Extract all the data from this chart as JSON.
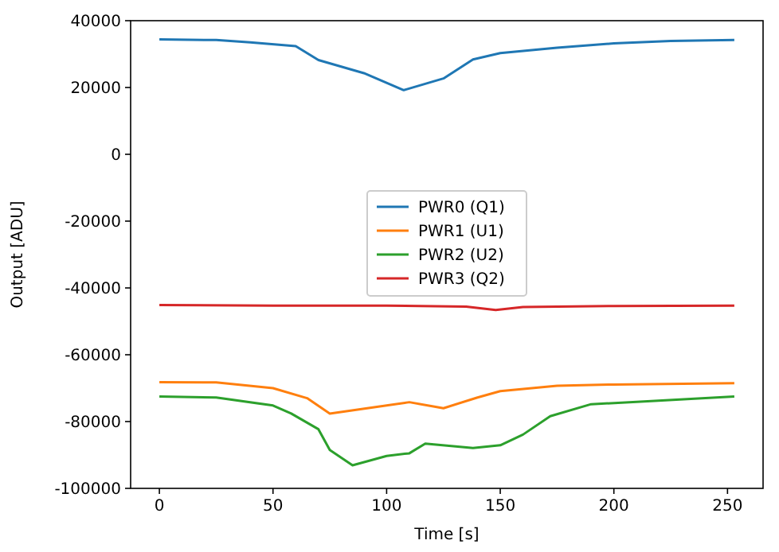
{
  "chart_data": {
    "type": "line",
    "xlabel": "Time [s]",
    "ylabel": "Output [ADU]",
    "xlim": [
      -12.65,
      265.65
    ],
    "xticks": [
      0,
      50,
      100,
      150,
      200,
      250
    ],
    "ylim": [
      -100000,
      40000
    ],
    "yticks": [
      -100000,
      -80000,
      -60000,
      -40000,
      -20000,
      0,
      20000,
      40000
    ],
    "legend": "center",
    "grid": false,
    "marker": "none",
    "line_style": "solid",
    "series": [
      {
        "name": "PWR0 (Q1)",
        "color": "#1f77b4",
        "x": [
          0,
          25,
          40,
          60,
          70,
          90,
          107.5,
          125,
          138,
          150,
          175,
          200,
          225,
          253
        ],
        "values": [
          34400,
          34200,
          33500,
          32400,
          28200,
          24300,
          19200,
          22700,
          28400,
          30300,
          31900,
          33200,
          33900,
          34200
        ]
      },
      {
        "name": "PWR1 (U1)",
        "color": "#ff7f0e",
        "x": [
          0,
          25,
          50,
          65,
          75,
          100,
          110,
          125,
          140,
          150,
          175,
          200,
          253
        ],
        "values": [
          -68200,
          -68300,
          -70000,
          -73000,
          -77600,
          -75200,
          -74200,
          -76000,
          -72800,
          -70900,
          -69300,
          -68900,
          -68500
        ]
      },
      {
        "name": "PWR2 (U2)",
        "color": "#2ca02c",
        "x": [
          0,
          25,
          50,
          58,
          70,
          75,
          85,
          100,
          110,
          117,
          138,
          150,
          160,
          172,
          190,
          210,
          253
        ],
        "values": [
          -72500,
          -72800,
          -75200,
          -77600,
          -82300,
          -88500,
          -93100,
          -90300,
          -89500,
          -86600,
          -87900,
          -87100,
          -83900,
          -78400,
          -74800,
          -74100,
          -72500
        ]
      },
      {
        "name": "PWR3 (Q2)",
        "color": "#d62728",
        "x": [
          0,
          50,
          100,
          135,
          148,
          160,
          200,
          253
        ],
        "values": [
          -45100,
          -45300,
          -45300,
          -45600,
          -46600,
          -45700,
          -45400,
          -45300
        ]
      }
    ]
  }
}
